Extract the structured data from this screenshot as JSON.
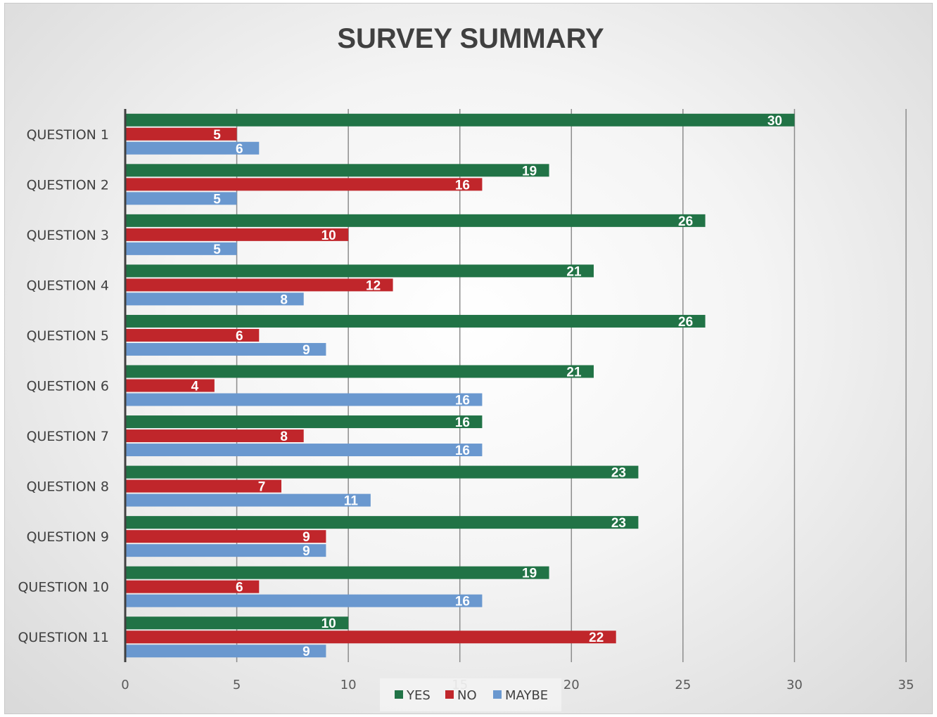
{
  "chart_data": {
    "type": "bar",
    "orientation": "horizontal",
    "title": "SURVEY SUMMARY",
    "categories": [
      "QUESTION  1",
      "QUESTION  2",
      "QUESTION  3",
      "QUESTION  4",
      "QUESTION  5",
      "QUESTION  6",
      "QUESTION  7",
      "QUESTION  8",
      "QUESTION  9",
      "QUESTION 10",
      "QUESTION 11"
    ],
    "series": [
      {
        "name": "YES",
        "color": "#217346",
        "values": [
          30,
          19,
          26,
          21,
          26,
          21,
          16,
          23,
          23,
          19,
          10
        ]
      },
      {
        "name": "NO",
        "color": "#c0262b",
        "values": [
          5,
          16,
          10,
          12,
          6,
          4,
          8,
          7,
          9,
          6,
          22
        ]
      },
      {
        "name": "MAYBE",
        "color": "#6a98cf",
        "values": [
          6,
          5,
          5,
          8,
          9,
          16,
          16,
          11,
          9,
          16,
          9
        ]
      }
    ],
    "xlim": [
      0,
      35
    ],
    "xticks": [
      0,
      5,
      10,
      15,
      20,
      25,
      30,
      35
    ],
    "grid": true,
    "legend": "bottom",
    "data_labels": true
  }
}
